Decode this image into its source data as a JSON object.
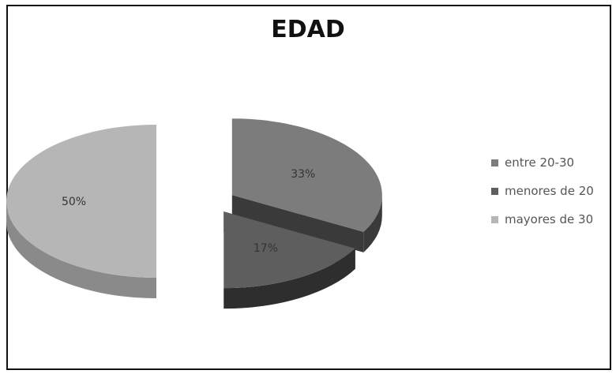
{
  "chart_data": {
    "type": "pie",
    "title": "EDAD",
    "slices": [
      {
        "label": "entre 20-30",
        "value": 33,
        "display": "33%",
        "color": "#7c7c7c",
        "side_color": "#3a3a3a"
      },
      {
        "label": "menores de 20",
        "value": 17,
        "display": "17%",
        "color": "#5e5e5e",
        "side_color": "#2e2e2e"
      },
      {
        "label": "mayores de 30",
        "value": 50,
        "display": "50%",
        "color": "#b6b6b6",
        "side_color": "#8a8a8a"
      }
    ],
    "legend_position": "right",
    "exploded": true,
    "style": "3d"
  }
}
